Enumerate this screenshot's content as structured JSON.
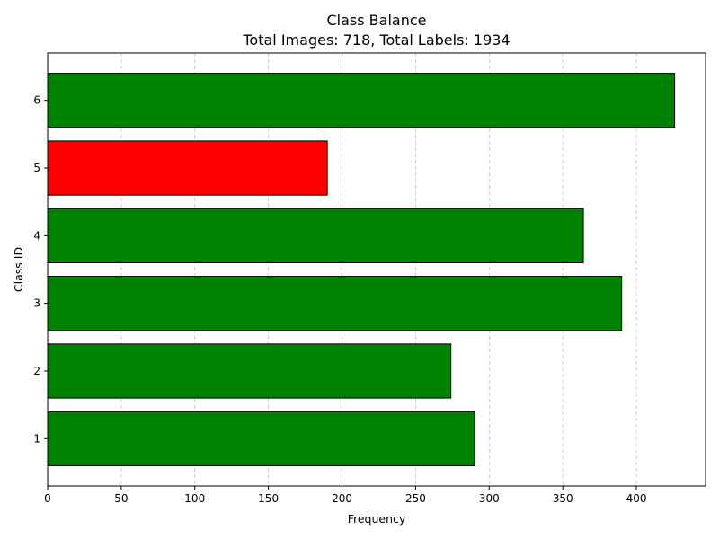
{
  "chart_data": {
    "type": "bar",
    "orientation": "horizontal",
    "title": "Class Balance",
    "subtitle": "Total Images: 718, Total Labels: 1934",
    "xlabel": "Frequency",
    "ylabel": "Class ID",
    "categories": [
      "1",
      "2",
      "3",
      "4",
      "5",
      "6"
    ],
    "values": [
      290,
      274,
      390,
      364,
      190,
      426
    ],
    "bar_colors": [
      "#008000",
      "#008000",
      "#008000",
      "#008000",
      "#ff0000",
      "#008000"
    ],
    "xlim": [
      0,
      447
    ],
    "xticks": [
      0,
      50,
      100,
      150,
      200,
      250,
      300,
      350,
      400
    ],
    "grid": "x-dashed"
  }
}
